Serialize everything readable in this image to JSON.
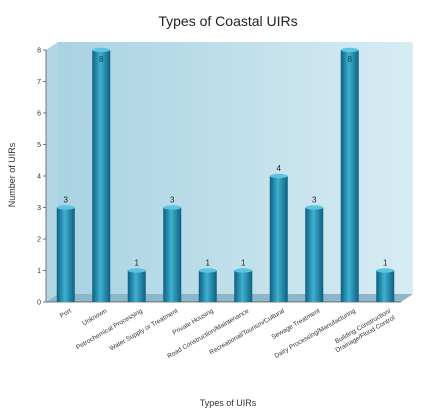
{
  "chart_data": {
    "type": "bar",
    "title": "Types of Coastal UIRs",
    "xlabel": "Types of UIRs",
    "ylabel": "Number of UIRs",
    "ylim": [
      0,
      8
    ],
    "yticks": [
      "0",
      "1",
      "2",
      "3",
      "4",
      "5",
      "6",
      "7",
      "8"
    ],
    "grid": false,
    "categories": [
      "Port",
      "Unknown",
      "Petrochemical Processing",
      "Water Supply or Treatment",
      "Private Housing",
      "Road Construction/Maintenance",
      "Recreational/Tourism/Cultural",
      "Sewage Treatment",
      "Dairy Processing/Manufacturing",
      "Building Construction/\nDrainage/Flood Control"
    ],
    "values": [
      3,
      8,
      1,
      3,
      1,
      1,
      4,
      3,
      8,
      1
    ],
    "data_labels": [
      "3",
      "8",
      "1",
      "3",
      "1",
      "1",
      "4",
      "3",
      "8",
      "1"
    ],
    "colors": {
      "bar_light": "#3fb0cf",
      "bar_mid": "#1b8bb0",
      "bar_dark": "#0d5f82",
      "wall": "#cfe6f0",
      "wall_shade": "#b3d6e4",
      "floor": "#7fa9bd"
    }
  }
}
